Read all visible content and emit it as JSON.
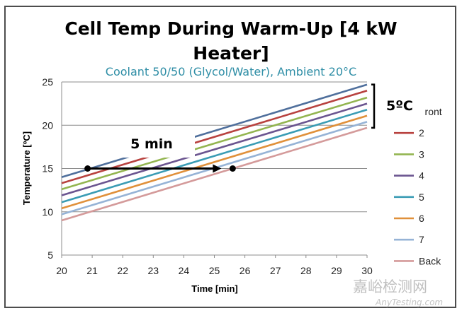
{
  "chart_data": {
    "type": "line",
    "title_line1": "Cell Temp During Warm-Up [4 kW",
    "title_line2": "Heater]",
    "subtitle": "Coolant 50/50 (Glycol/Water), Ambient 20°C",
    "xlabel": "Time [min]",
    "ylabel": "Temperature [ºC]",
    "xlim": [
      20,
      30
    ],
    "ylim": [
      5,
      25
    ],
    "xticks": [
      "20",
      "21",
      "22",
      "23",
      "24",
      "25",
      "26",
      "27",
      "28",
      "29",
      "30"
    ],
    "yticks": [
      "5",
      "10",
      "15",
      "20",
      "25"
    ],
    "grid": true,
    "legend_position": "right",
    "series": [
      {
        "name": "Front",
        "color": "#4f6f9c",
        "x": [
          20,
          30
        ],
        "y": [
          14.0,
          24.7
        ]
      },
      {
        "name": "2",
        "color": "#b8423f",
        "x": [
          20,
          30
        ],
        "y": [
          13.3,
          24.0
        ]
      },
      {
        "name": "3",
        "color": "#93b550",
        "x": [
          20,
          30
        ],
        "y": [
          12.6,
          23.2
        ]
      },
      {
        "name": "4",
        "color": "#6b5590",
        "x": [
          20,
          30
        ],
        "y": [
          11.9,
          22.5
        ]
      },
      {
        "name": "5",
        "color": "#3a9cb4",
        "x": [
          20,
          30
        ],
        "y": [
          11.1,
          21.8
        ]
      },
      {
        "name": "6",
        "color": "#e0903a",
        "x": [
          20,
          30
        ],
        "y": [
          10.4,
          21.1
        ]
      },
      {
        "name": "7",
        "color": "#96b3d6",
        "x": [
          20,
          30
        ],
        "y": [
          9.7,
          20.4
        ]
      },
      {
        "name": "Back",
        "color": "#d49a9a",
        "x": [
          20,
          30
        ],
        "y": [
          9.0,
          19.7
        ]
      }
    ],
    "annotations": {
      "time_arrow": {
        "label": "5 min",
        "x_start": 20.85,
        "x_end": 25.6,
        "y": 15
      },
      "spread_brace": {
        "label": "5ºC",
        "x": 30,
        "y_low": 19.7,
        "y_high": 24.7
      }
    }
  },
  "watermark": {
    "chinese": "嘉峪检测网",
    "english": "AnyTesting.com"
  }
}
